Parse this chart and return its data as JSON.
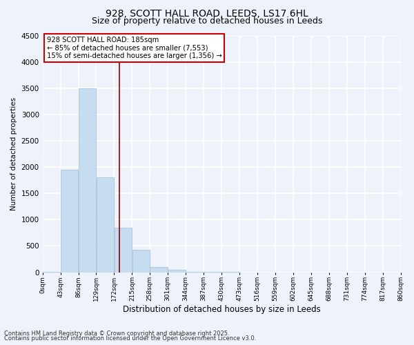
{
  "title_line1": "928, SCOTT HALL ROAD, LEEDS, LS17 6HL",
  "title_line2": "Size of property relative to detached houses in Leeds",
  "xlabel": "Distribution of detached houses by size in Leeds",
  "ylabel": "Number of detached properties",
  "bar_color": "#c6dcf0",
  "bar_edge_color": "#9dbdd8",
  "bin_edges": [
    0,
    43,
    86,
    129,
    172,
    215,
    258,
    301,
    344,
    387,
    430,
    473,
    516,
    559,
    602,
    645,
    688,
    731,
    774,
    817,
    860
  ],
  "bar_heights": [
    3,
    1950,
    3500,
    1800,
    850,
    420,
    100,
    45,
    8,
    3,
    1,
    0,
    0,
    0,
    0,
    0,
    0,
    0,
    0,
    0
  ],
  "property_size": 185,
  "vline_color": "#8b0000",
  "annotation_text": "928 SCOTT HALL ROAD: 185sqm\n← 85% of detached houses are smaller (7,553)\n15% of semi-detached houses are larger (1,356) →",
  "annotation_box_color": "#cc0000",
  "annotation_box_fill": "#ffffff",
  "ylim": [
    0,
    4500
  ],
  "footnote1": "Contains HM Land Registry data © Crown copyright and database right 2025.",
  "footnote2": "Contains public sector information licensed under the Open Government Licence v3.0.",
  "bg_color": "#eef2fa",
  "grid_color": "#ffffff",
  "title_fontsize": 10,
  "subtitle_fontsize": 9,
  "tick_labels": [
    "0sqm",
    "43sqm",
    "86sqm",
    "129sqm",
    "172sqm",
    "215sqm",
    "258sqm",
    "301sqm",
    "344sqm",
    "387sqm",
    "430sqm",
    "473sqm",
    "516sqm",
    "559sqm",
    "602sqm",
    "645sqm",
    "688sqm",
    "731sqm",
    "774sqm",
    "817sqm",
    "860sqm"
  ]
}
